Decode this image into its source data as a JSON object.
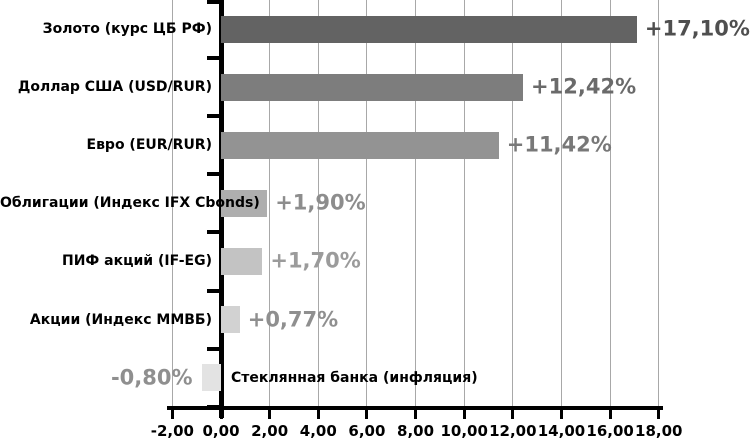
{
  "chart_data": {
    "type": "bar",
    "orientation": "horizontal",
    "title": "",
    "xlabel": "",
    "ylabel": "",
    "xlim": [
      -2,
      18
    ],
    "grid": true,
    "gridline_color": "#a8a8a8",
    "axis_color": "#000000",
    "series": [
      {
        "label": "Золото (курс ЦБ РФ)",
        "value": 17.1,
        "display": "+17,10%",
        "bar_color": "#636363",
        "value_color": "#4f4f4f"
      },
      {
        "label": "Доллар США (USD/RUR)",
        "value": 12.42,
        "display": "+12,42%",
        "bar_color": "#7d7d7d",
        "value_color": "#6a6a6a"
      },
      {
        "label": "Евро (EUR/RUR)",
        "value": 11.42,
        "display": "+11,42%",
        "bar_color": "#939393",
        "value_color": "#787878"
      },
      {
        "label": "Облигации (Индекс IFX Cbonds)",
        "value": 1.9,
        "display": "+1,90%",
        "bar_color": "#aeaeae",
        "value_color": "#8d8d8d"
      },
      {
        "label": "ПИФ акций (IF-EG)",
        "value": 1.7,
        "display": "+1,70%",
        "bar_color": "#c3c3c3",
        "value_color": "#9b9b9b"
      },
      {
        "label": "Акции (Индекс ММВБ)",
        "value": 0.77,
        "display": "+0,77%",
        "bar_color": "#d2d2d2",
        "value_color": "#8f8f8f"
      },
      {
        "label": "Стеклянная банка (инфляция)",
        "value": -0.8,
        "display": "-0,80%",
        "bar_color": "#e3e3e3",
        "value_color": "#8f8f8f"
      }
    ],
    "x_ticks": [
      {
        "value": -2,
        "label": "-2,00"
      },
      {
        "value": 0,
        "label": "0,00"
      },
      {
        "value": 2,
        "label": "2,00"
      },
      {
        "value": 4,
        "label": "4,00"
      },
      {
        "value": 6,
        "label": "6,00"
      },
      {
        "value": 8,
        "label": "8,00"
      },
      {
        "value": 10,
        "label": "10,00"
      },
      {
        "value": 12,
        "label": "12,00"
      },
      {
        "value": 14,
        "label": "14,00"
      },
      {
        "value": 16,
        "label": "16,00"
      },
      {
        "value": 18,
        "label": "18,00"
      }
    ]
  }
}
